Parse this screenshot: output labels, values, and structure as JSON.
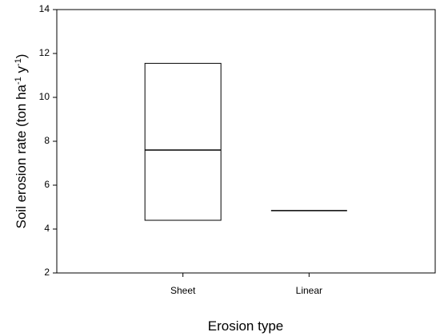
{
  "chart_data": {
    "type": "box",
    "y_label_parts": [
      "Soil erosion rate (ton ha",
      "-1",
      " y",
      "-1",
      ")"
    ],
    "x_label": "Erosion type",
    "categories": [
      "Sheet",
      "Linear"
    ],
    "boxes": [
      {
        "q1": 4.4,
        "median": 7.6,
        "q3": 11.55
      },
      {
        "median": 4.84
      }
    ],
    "ylim": [
      2,
      14
    ],
    "yticks": [
      2,
      4,
      6,
      8,
      10,
      12,
      14
    ],
    "color": "#000000"
  }
}
